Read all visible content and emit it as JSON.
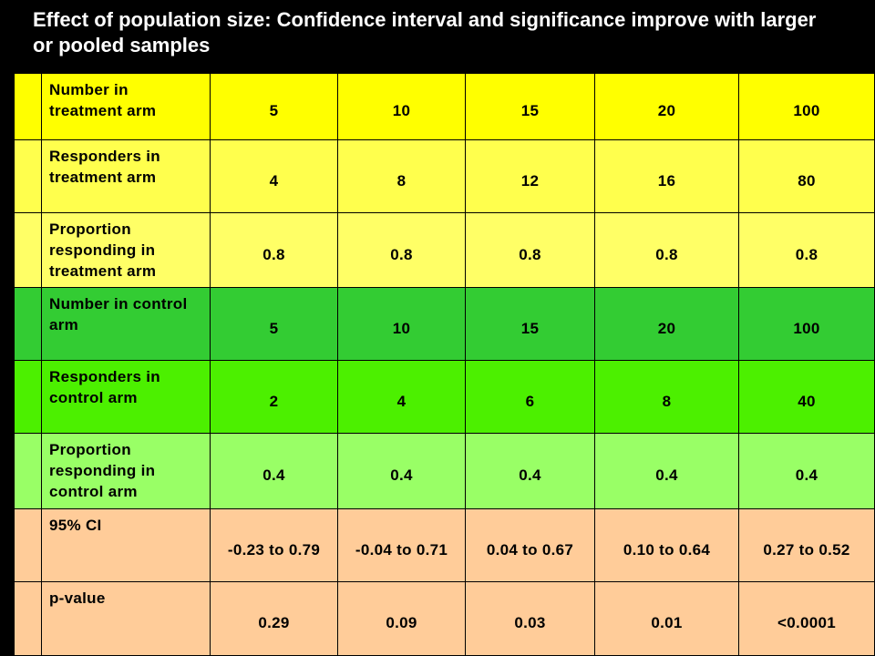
{
  "title": "Effect of population size: Confidence interval and significance improve with larger or pooled samples",
  "table": {
    "rows": [
      {
        "label": "Number in treatment arm",
        "cells": [
          "5",
          "10",
          "15",
          "20",
          "100"
        ]
      },
      {
        "label": "Responders in treatment arm",
        "cells": [
          "4",
          "8",
          "12",
          "16",
          "80"
        ]
      },
      {
        "label": "Proportion responding in treatment arm",
        "cells": [
          "0.8",
          "0.8",
          "0.8",
          "0.8",
          "0.8"
        ]
      },
      {
        "label": "Number in control arm",
        "cells": [
          "5",
          "10",
          "15",
          "20",
          "100"
        ]
      },
      {
        "label": "Responders in control arm",
        "cells": [
          "2",
          "4",
          "6",
          "8",
          "40"
        ]
      },
      {
        "label": "Proportion responding in control arm",
        "cells": [
          "0.4",
          "0.4",
          "0.4",
          "0.4",
          "0.4"
        ]
      },
      {
        "label": "95% CI",
        "cells": [
          "-0.23 to 0.79",
          "-0.04 to 0.71",
          "0.04 to 0.67",
          "0.10 to 0.64",
          "0.27 to 0.52"
        ]
      },
      {
        "label": "p-value",
        "cells": [
          "0.29",
          "0.09",
          "0.03",
          "0.01",
          "<0.0001"
        ]
      }
    ]
  }
}
